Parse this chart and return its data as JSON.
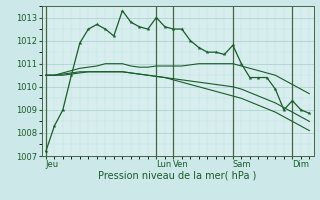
{
  "background_color": "#cce8e8",
  "plot_bg_color": "#d8eeee",
  "grid_color_major": "#aacccc",
  "grid_color_minor": "#bbdddd",
  "line_color": "#1a5c2a",
  "xlabel": "Pression niveau de la mer( hPa )",
  "ylim": [
    1007,
    1013.5
  ],
  "yticks": [
    1007,
    1008,
    1009,
    1010,
    1011,
    1012,
    1013
  ],
  "day_labels": [
    "Jeu",
    "Lun",
    "Ven",
    "Sam",
    "Dim"
  ],
  "day_positions": [
    0,
    13,
    15,
    22,
    29
  ],
  "n_points": 32,
  "series_jagged": [
    1007.2,
    1008.3,
    1009.0,
    1010.5,
    1011.9,
    1012.5,
    1012.7,
    1012.5,
    1012.2,
    1013.3,
    1012.8,
    1012.6,
    1012.5,
    1013.0,
    1012.6,
    1012.5,
    1012.5,
    1012.0,
    1011.7,
    1011.5,
    1011.5,
    1011.4,
    1011.8,
    1011.0,
    1010.4,
    1010.4,
    1010.4,
    1009.9,
    1009.0,
    1009.4,
    1009.0,
    1008.85
  ],
  "series1": [
    1010.5,
    1010.5,
    1010.6,
    1010.7,
    1010.8,
    1010.85,
    1010.9,
    1011.0,
    1011.0,
    1011.0,
    1010.9,
    1010.85,
    1010.85,
    1010.9,
    1010.9,
    1010.9,
    1010.9,
    1010.95,
    1011.0,
    1011.0,
    1011.0,
    1011.0,
    1011.0,
    1010.9,
    1010.8,
    1010.7,
    1010.6,
    1010.5,
    1010.3,
    1010.1,
    1009.9,
    1009.7
  ],
  "series2": [
    1010.5,
    1010.5,
    1010.5,
    1010.55,
    1010.6,
    1010.65,
    1010.65,
    1010.65,
    1010.65,
    1010.65,
    1010.6,
    1010.55,
    1010.5,
    1010.45,
    1010.4,
    1010.35,
    1010.3,
    1010.25,
    1010.2,
    1010.15,
    1010.1,
    1010.05,
    1010.0,
    1009.9,
    1009.75,
    1009.6,
    1009.45,
    1009.3,
    1009.1,
    1008.9,
    1008.7,
    1008.5
  ],
  "series3_bottom": [
    1010.5,
    1010.5,
    1010.55,
    1010.6,
    1010.65,
    1010.65,
    1010.65,
    1010.65,
    1010.65,
    1010.65,
    1010.6,
    1010.55,
    1010.5,
    1010.45,
    1010.4,
    1010.3,
    1010.2,
    1010.1,
    1010.0,
    1009.9,
    1009.8,
    1009.7,
    1009.6,
    1009.5,
    1009.35,
    1009.2,
    1009.05,
    1008.9,
    1008.7,
    1008.5,
    1008.3,
    1008.1
  ]
}
